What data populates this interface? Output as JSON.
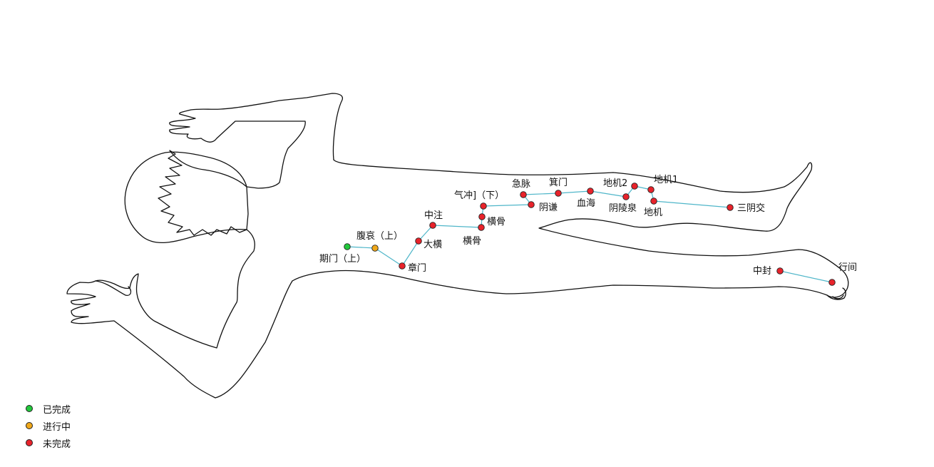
{
  "colors": {
    "completed": "#22c83c",
    "in_progress": "#f0a81a",
    "not_completed": "#e8232b",
    "connector": "#4fb6c9",
    "outline": "#111111"
  },
  "legend": [
    {
      "status": "completed",
      "label": "已完成"
    },
    {
      "status": "in_progress",
      "label": "进行中"
    },
    {
      "status": "not_completed",
      "label": "未完成"
    }
  ],
  "points": {
    "p1": {
      "label": "期门（上）",
      "status": "completed"
    },
    "p2": {
      "label": "腹哀（上）",
      "status": "in_progress"
    },
    "p3": {
      "label": "章门",
      "status": "not_completed"
    },
    "p4": {
      "label": "大横",
      "status": "not_completed"
    },
    "p5": {
      "label": "中注",
      "status": "not_completed"
    },
    "p6": {
      "label": "横骨",
      "status": "not_completed"
    },
    "p7": {
      "label": "横骨",
      "status": "not_completed"
    },
    "p8": {
      "label": "气冲]（下）",
      "status": "not_completed"
    },
    "p9": {
      "label": "阴谦",
      "status": "not_completed"
    },
    "p10": {
      "label": "急脉",
      "status": "not_completed"
    },
    "p11": {
      "label": "箕门",
      "status": "not_completed"
    },
    "p12": {
      "label": "血海",
      "status": "not_completed"
    },
    "p13": {
      "label": "阴陵泉",
      "status": "not_completed"
    },
    "p14": {
      "label": "地机2",
      "status": "not_completed"
    },
    "p15": {
      "label": "地机1",
      "status": "not_completed"
    },
    "p16": {
      "label": "地机",
      "status": "not_completed"
    },
    "p17": {
      "label": "三阴交",
      "status": "not_completed"
    },
    "p18": {
      "label": "中封",
      "status": "not_completed"
    },
    "p19": {
      "label": "行间",
      "status": "not_completed"
    }
  }
}
